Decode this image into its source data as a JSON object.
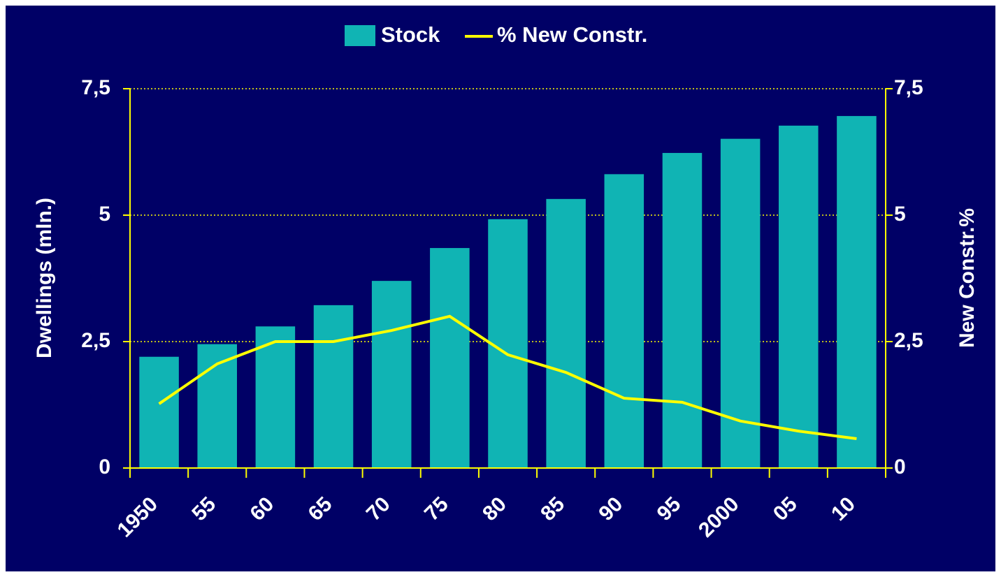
{
  "chart_data": {
    "type": "bar",
    "categories": [
      "1950",
      "55",
      "60",
      "65",
      "70",
      "75",
      "80",
      "85",
      "90",
      "95",
      "2000",
      "05",
      "10"
    ],
    "series": [
      {
        "name": "Stock",
        "type": "bar",
        "color": "#10b4b4",
        "values": [
          2.2,
          2.45,
          2.8,
          3.22,
          3.7,
          4.35,
          4.92,
          5.32,
          5.81,
          6.23,
          6.51,
          6.77,
          6.96
        ]
      },
      {
        "name": "% New Constr.",
        "type": "line",
        "axis": "y2",
        "color": "#ffff00",
        "values": [
          1.27,
          2.06,
          2.5,
          2.5,
          2.72,
          3.0,
          2.24,
          1.89,
          1.38,
          1.3,
          0.93,
          0.73,
          0.58
        ]
      }
    ],
    "ylabel": "Dwellings (mln.)",
    "y2label": "New Constr.%",
    "ylim": [
      0,
      7.5
    ],
    "yticks": [
      0,
      {
        "value": 2.5,
        "label": "2,5"
      },
      5,
      {
        "value": 7.5,
        "label": "7,5"
      }
    ],
    "y2lim": [
      0,
      7.5
    ],
    "y2ticks": [
      0,
      {
        "value": 2.5,
        "label": "2,5"
      },
      5,
      {
        "value": 7.5,
        "label": "7,5"
      }
    ],
    "grid": true,
    "legend": "top"
  }
}
